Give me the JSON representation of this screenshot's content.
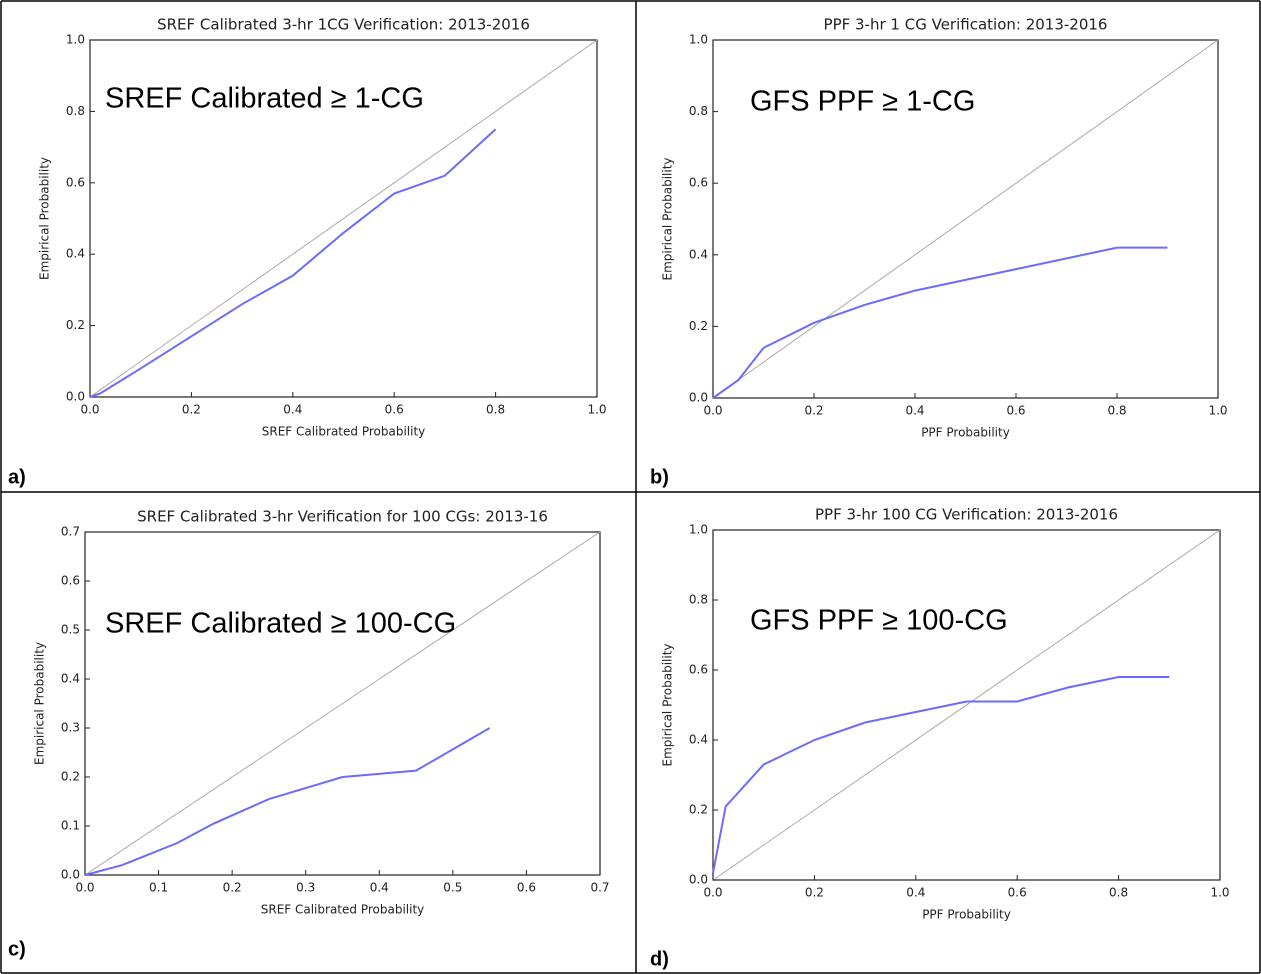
{
  "chart_data": [
    {
      "type": "line",
      "panel_label": "a)",
      "title": "SREF Calibrated 3-hr 1CG Verification: 2013-2016",
      "annotation": "SREF Calibrated ≥ 1-CG",
      "xlabel": "SREF Calibrated Probability",
      "ylabel": "Empirical Probability",
      "color": "#6b6bff",
      "diagonal": true,
      "x": [
        0,
        0.02,
        0.1,
        0.2,
        0.3,
        0.4,
        0.5,
        0.6,
        0.7,
        0.8
      ],
      "values": [
        0,
        0.01,
        0.08,
        0.17,
        0.26,
        0.34,
        0.46,
        0.57,
        0.62,
        0.75
      ],
      "xlim": [
        0,
        1
      ],
      "ylim": [
        0,
        1
      ],
      "xticks": [
        {
          "value": 0,
          "label": "0.0"
        },
        0.2,
        0.4,
        0.6,
        0.8,
        {
          "value": 1,
          "label": "1.0"
        }
      ],
      "yticks": [
        {
          "value": 0,
          "label": "0.0"
        },
        0.2,
        0.4,
        0.6,
        0.8,
        {
          "value": 1,
          "label": "1.0"
        }
      ]
    },
    {
      "type": "line",
      "panel_label": "b)",
      "title": "PPF 3-hr 1 CG Verification: 2013-2016",
      "annotation": "GFS PPF ≥ 1-CG",
      "xlabel": "PPF Probability",
      "ylabel": "Empirical Probability",
      "color": "#6b6bff",
      "diagonal": true,
      "x": [
        0,
        0.05,
        0.1,
        0.2,
        0.3,
        0.4,
        0.5,
        0.6,
        0.7,
        0.8,
        0.9
      ],
      "values": [
        0,
        0.05,
        0.14,
        0.21,
        0.26,
        0.3,
        0.33,
        0.36,
        0.39,
        0.42,
        0.42
      ],
      "xlim": [
        0,
        1
      ],
      "ylim": [
        0,
        1
      ],
      "xticks": [
        {
          "value": 0,
          "label": "0.0"
        },
        0.2,
        0.4,
        0.6,
        0.8,
        {
          "value": 1,
          "label": "1.0"
        }
      ],
      "yticks": [
        {
          "value": 0,
          "label": "0.0"
        },
        0.2,
        0.4,
        0.6,
        0.8,
        {
          "value": 1,
          "label": "1.0"
        }
      ]
    },
    {
      "type": "line",
      "panel_label": "c)",
      "title": "SREF Calibrated 3-hr Verification for 100 CGs: 2013-16",
      "annotation": "SREF Calibrated ≥ 100-CG",
      "xlabel": "SREF Calibrated Probability",
      "ylabel": "Empirical Probability",
      "color": "#6b6bff",
      "diagonal": true,
      "x": [
        0,
        0.05,
        0.125,
        0.175,
        0.25,
        0.35,
        0.45,
        0.55
      ],
      "values": [
        0,
        0.02,
        0.065,
        0.105,
        0.155,
        0.2,
        0.213,
        0.3
      ],
      "xlim": [
        0,
        0.7
      ],
      "ylim": [
        0,
        0.7
      ],
      "xticks": [
        {
          "value": 0,
          "label": "0.0"
        },
        0.1,
        0.2,
        0.3,
        0.4,
        0.5,
        0.6,
        0.7
      ],
      "yticks": [
        {
          "value": 0,
          "label": "0.0"
        },
        0.1,
        0.2,
        0.3,
        0.4,
        0.5,
        0.6,
        0.7
      ]
    },
    {
      "type": "line",
      "panel_label": "d)",
      "title": "PPF 3-hr 100 CG Verification: 2013-2016",
      "annotation": "GFS PPF ≥ 100-CG",
      "xlabel": "PPF Probability",
      "ylabel": "Empirical Probability",
      "color": "#6b6bff",
      "diagonal": true,
      "x": [
        0,
        0.025,
        0.1,
        0.2,
        0.3,
        0.4,
        0.5,
        0.6,
        0.7,
        0.8,
        0.9
      ],
      "values": [
        0.02,
        0.21,
        0.33,
        0.4,
        0.45,
        0.48,
        0.51,
        0.51,
        0.55,
        0.58,
        0.58
      ],
      "xlim": [
        0,
        1
      ],
      "ylim": [
        0,
        1
      ],
      "xticks": [
        {
          "value": 0,
          "label": "0.0"
        },
        0.2,
        0.4,
        0.6,
        0.8,
        {
          "value": 1,
          "label": "1.0"
        }
      ],
      "yticks": [
        {
          "value": 0,
          "label": "0.0"
        },
        0.2,
        0.4,
        0.6,
        0.8,
        {
          "value": 1,
          "label": "1.0"
        }
      ]
    }
  ]
}
